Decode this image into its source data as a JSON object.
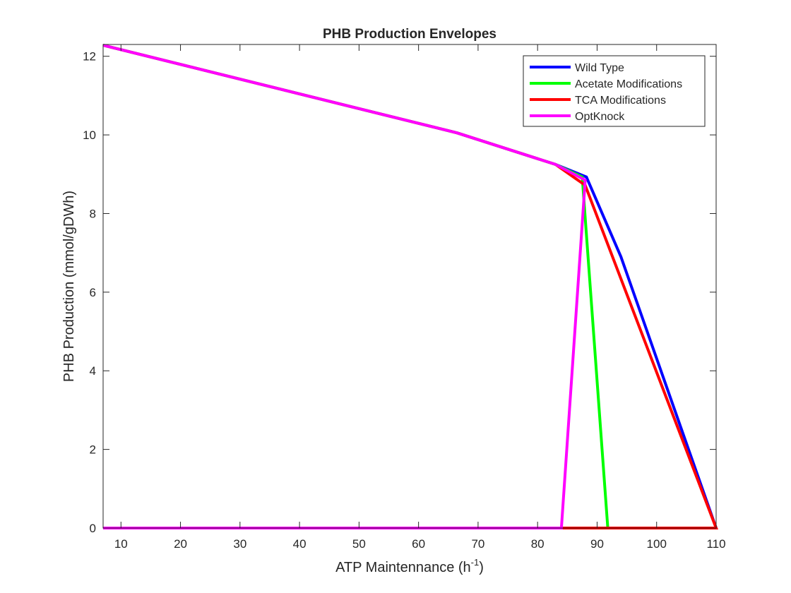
{
  "chart_data": {
    "type": "line",
    "title": "PHB Production Envelopes",
    "xlabel": {
      "base": "ATP Maintennance (h",
      "sup": "-1",
      "close": ")"
    },
    "ylabel": "PHB Production (mmol/gDWh)",
    "xlim": [
      7,
      110
    ],
    "ylim": [
      0,
      12.3
    ],
    "xticks": [
      10,
      20,
      30,
      40,
      50,
      60,
      70,
      80,
      90,
      100,
      110
    ],
    "yticks": [
      0,
      2,
      4,
      6,
      8,
      10,
      12
    ],
    "grid": false,
    "legend_position": "top-right",
    "series": [
      {
        "name": "Wild Type",
        "color": "#0000ff",
        "points": [
          [
            7,
            12.28
          ],
          [
            66.5,
            10.05
          ],
          [
            83,
            9.25
          ],
          [
            88.2,
            8.93
          ],
          [
            94,
            6.9
          ],
          [
            110,
            0
          ],
          [
            83,
            0
          ],
          [
            7,
            0
          ]
        ]
      },
      {
        "name": "Acetate Modifications",
        "color": "#00ff00",
        "points": [
          [
            7,
            12.28
          ],
          [
            66.5,
            10.05
          ],
          [
            83,
            9.25
          ],
          [
            87.5,
            8.93
          ],
          [
            91.8,
            0
          ],
          [
            7,
            0
          ]
        ]
      },
      {
        "name": "TCA Modifications",
        "color": "#ff0000",
        "points": [
          [
            7,
            12.28
          ],
          [
            66.5,
            10.05
          ],
          [
            83,
            9.25
          ],
          [
            88,
            8.72
          ],
          [
            110,
            0
          ],
          [
            7,
            0
          ]
        ]
      },
      {
        "name": "OptKnock",
        "color": "#ff00ff",
        "points": [
          [
            7,
            12.28
          ],
          [
            66.5,
            10.05
          ],
          [
            83,
            9.25
          ],
          [
            88,
            8.85
          ],
          [
            84,
            0
          ],
          [
            7,
            0
          ]
        ]
      }
    ]
  }
}
